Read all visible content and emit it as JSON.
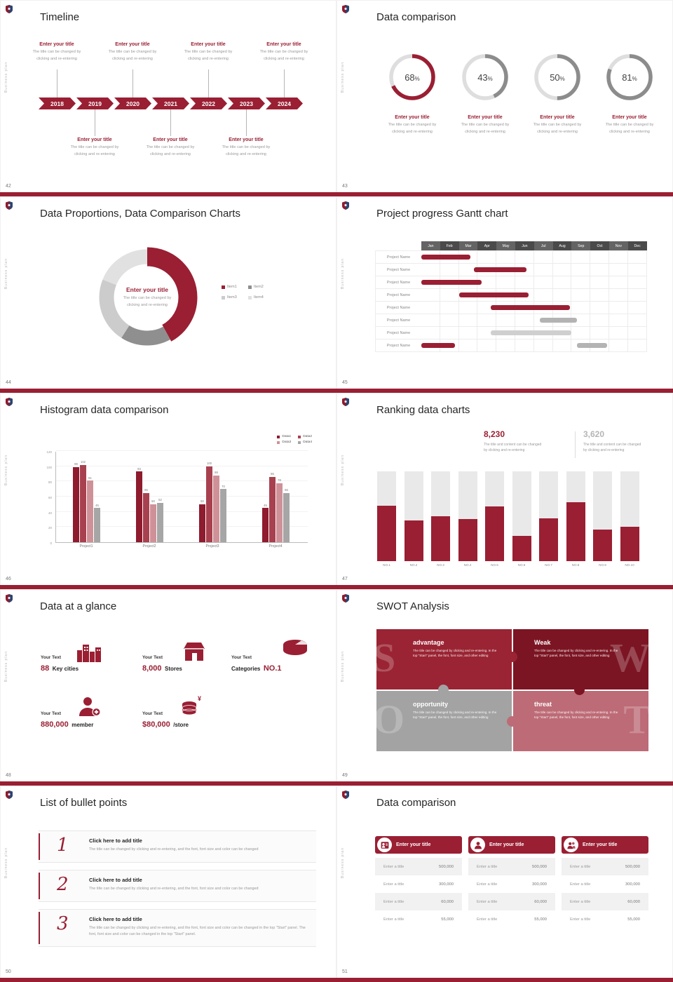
{
  "theme": {
    "accent": "#9a1f33",
    "accent_dark": "#7c1523",
    "gray": "#a3a3a3",
    "rose": "#bd6b76"
  },
  "chrome": {
    "sidebar_text": "Business plan"
  },
  "shared": {
    "enter_title": "Enter your title",
    "desc1": "The title can be changed by",
    "desc2": "clicking and re-entering"
  },
  "timeline": {
    "page": "42",
    "title": "Timeline",
    "years": [
      "2018",
      "2019",
      "2020",
      "2021",
      "2022",
      "2023",
      "2024"
    ]
  },
  "donuts": {
    "page": "43",
    "title": "Data comparison",
    "pct_suffix": "%",
    "rings": [
      {
        "pct": 68,
        "color": "#9a1f33"
      },
      {
        "pct": 43,
        "color": "#8c8c8c"
      },
      {
        "pct": 50,
        "color": "#8c8c8c"
      },
      {
        "pct": 81,
        "color": "#8c8c8c"
      }
    ]
  },
  "proportions": {
    "page": "44",
    "title": "Data Proportions, Data Comparison Charts",
    "segments": [
      {
        "label": "Item1",
        "value": 42,
        "color": "#9a1f33"
      },
      {
        "label": "Item2",
        "value": 17,
        "color": "#8f8f8f"
      },
      {
        "label": "Item3",
        "value": 22,
        "color": "#cccccc"
      },
      {
        "label": "Item4",
        "value": 19,
        "color": "#e1e1e1"
      }
    ]
  },
  "gantt": {
    "page": "45",
    "title": "Project progress Gantt chart",
    "months": [
      "Jan",
      "Feb",
      "Mar",
      "Apr",
      "May",
      "Jun",
      "Jul",
      "Aug",
      "Sep",
      "Oct",
      "Nov",
      "Dec"
    ],
    "row_label": "Project Name",
    "row_count": 8,
    "bars": [
      {
        "row": 0,
        "start": 0,
        "end": 2.6,
        "color": "#9a1f33"
      },
      {
        "row": 1,
        "start": 2.8,
        "end": 5.6,
        "color": "#9a1f33"
      },
      {
        "row": 2,
        "start": 0,
        "end": 3.2,
        "color": "#9a1f33"
      },
      {
        "row": 3,
        "start": 2.0,
        "end": 5.7,
        "color": "#9a1f33"
      },
      {
        "row": 4,
        "start": 3.7,
        "end": 7.9,
        "color": "#9a1f33"
      },
      {
        "row": 5,
        "start": 6.3,
        "end": 8.3,
        "color": "#b3b3b3"
      },
      {
        "row": 6,
        "start": 3.7,
        "end": 8.0,
        "color": "#cfcfcf"
      },
      {
        "row": 7,
        "start": 0,
        "end": 1.8,
        "color": "#9a1f33"
      },
      {
        "row": 7,
        "start": 8.3,
        "end": 9.9,
        "color": "#b3b3b3"
      }
    ]
  },
  "histogram": {
    "page": "46",
    "title": "Histogram data comparison",
    "legend": [
      "Data1",
      "Data2",
      "Data3",
      "Data4"
    ],
    "colors": [
      "#8e1b2e",
      "#a8414f",
      "#cf9198",
      "#a6a6a6"
    ],
    "categories": [
      "Project1",
      "Project2",
      "Project3",
      "Project4"
    ],
    "series": [
      {
        "name": "Data1",
        "values": [
          99,
          93,
          50,
          45
        ]
      },
      {
        "name": "Data2",
        "values": [
          102,
          65,
          100,
          86
        ]
      },
      {
        "name": "Data3",
        "values": [
          81,
          50,
          88,
          78
        ]
      },
      {
        "name": "Data4",
        "values": [
          45,
          52,
          70,
          65
        ]
      }
    ],
    "y_ticks": [
      0,
      20,
      40,
      60,
      80,
      100,
      120
    ],
    "y_max": 120
  },
  "ranking": {
    "page": "47",
    "title": "Ranking data charts",
    "stat_primary": {
      "value": "8,230",
      "desc1": "The title and content can be changed",
      "desc2": "by clicking and re-entering"
    },
    "stat_secondary": {
      "value": "3,620",
      "desc1": "The title and content can be changed",
      "desc2": "by clicking and re-entering"
    },
    "categories": [
      "NO.1",
      "NO.2",
      "NO.3",
      "NO.4",
      "NO.5",
      "NO.6",
      "NO.7",
      "NO.8",
      "NO.9",
      "NO.10"
    ],
    "values": [
      62,
      45,
      50,
      47,
      61,
      28,
      48,
      66,
      35,
      38
    ],
    "max": 100
  },
  "glance": {
    "page": "48",
    "title": "Data at a glance",
    "yen": "¥",
    "items": [
      {
        "label": "Your Text",
        "accent": "88",
        "plain": "Key cities",
        "icon": "city-icon"
      },
      {
        "label": "Your Text",
        "accent": "8,000",
        "plain": "Stores",
        "icon": "store-icon"
      },
      {
        "label": "Your Text",
        "accent": "NO.1",
        "plain": "Categories",
        "icon": "categories-icon"
      },
      {
        "label": "Your Text",
        "accent": "880,000",
        "plain": "member",
        "icon": "member-icon"
      },
      {
        "label": "Your Text",
        "accent": "$80,000",
        "plain": "/store",
        "icon": "money-icon"
      }
    ]
  },
  "swot": {
    "page": "49",
    "title": "SWOT Analysis",
    "quadrants": [
      {
        "letter": "S",
        "word": "advantage",
        "color": "#9a2433",
        "desc": "The title can be changed by clicking and re-entering. In the top \"Start\" panel, the font, font size, and other editing"
      },
      {
        "letter": "W",
        "word": "Weak",
        "color": "#7c1523",
        "desc": "The title can be changed by clicking and re-entering. In the top \"Start\" panel, the font, font size, and other editing"
      },
      {
        "letter": "O",
        "word": "opportunity",
        "color": "#a3a3a3",
        "desc": "The title can be changed by clicking and re-entering. In the top \"Start\" panel, the font, font size, and other editing"
      },
      {
        "letter": "T",
        "word": "threat",
        "color": "#bd6b76",
        "desc": "The title can be changed by clicking and re-entering. In the top \"Start\" panel, the font, font size, and other editing"
      }
    ]
  },
  "bullets": {
    "page": "50",
    "title": "List of bullet points",
    "items": [
      {
        "num": "1",
        "title": "Click here to add title",
        "desc": "The title can be changed by clicking and re-entering, and the font, font size and color can be changed"
      },
      {
        "num": "2",
        "title": "Click here to add title",
        "desc": "The title can be changed by clicking and re-entering, and the font, font size and color can be changed"
      },
      {
        "num": "3",
        "title": "Click here to add title",
        "desc": "The title can be changed by clicking and re-entering, and the font, font size and color can be changed in the top \"Start\" panel. The font, font size and color can be changed in the top \"Start\" panel."
      }
    ]
  },
  "cards": {
    "page": "51",
    "title": "Data comparison",
    "row_label": "Enter a title",
    "values": [
      "500,000",
      "300,000",
      "60,000",
      "55,000"
    ],
    "cards": [
      {
        "header": "Enter your title",
        "icon": "person-card-icon"
      },
      {
        "header": "Enter your title",
        "icon": "person-icon"
      },
      {
        "header": "Enter your title",
        "icon": "people-icon"
      }
    ]
  }
}
